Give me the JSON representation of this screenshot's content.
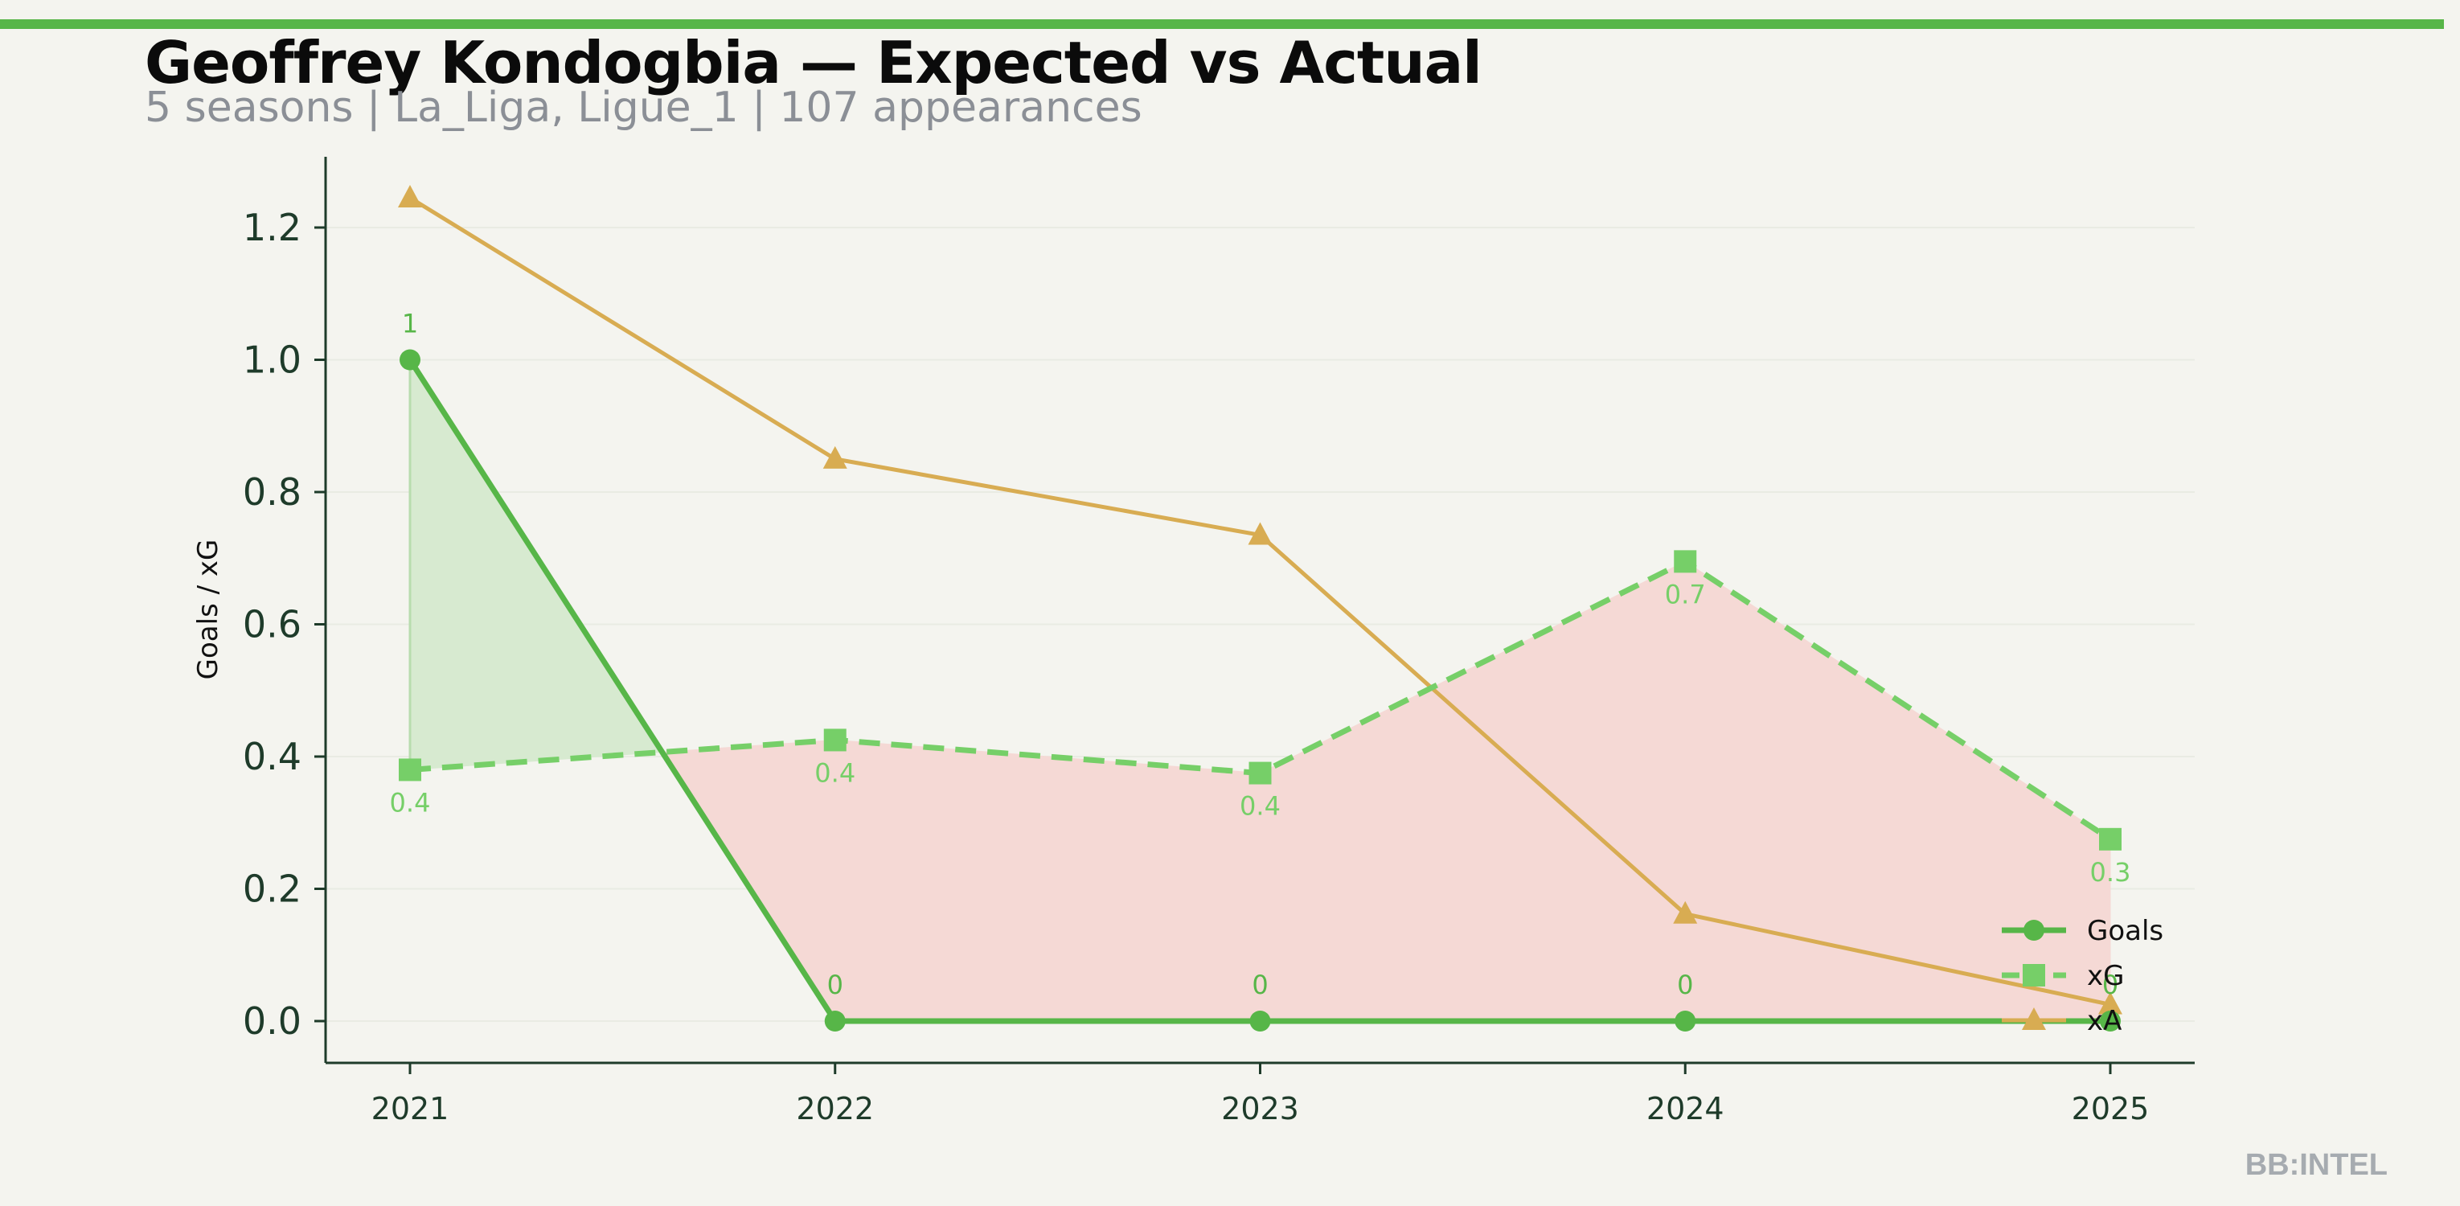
{
  "header": {
    "title": "Geoffrey Kondogbia — Expected vs Actual",
    "subtitle": "5 seasons | La_Liga, Ligue_1 | 107 appearances"
  },
  "watermark": "BB:INTEL",
  "colors": {
    "goals": "#57b648",
    "xg": "#76cf68",
    "xa": "#d8ac52",
    "over_fill": "#d7ead0",
    "under_fill": "#f5d9d5",
    "axis": "#1e3b2a",
    "background": "#f4f4ef"
  },
  "chart_data": {
    "type": "line",
    "title": "Geoffrey Kondogbia — Expected vs Actual",
    "subtitle": "5 seasons | La_Liga, Ligue_1 | 107 appearances",
    "xlabel": "",
    "ylabel": "Goals / xG",
    "x": [
      "2021",
      "2022",
      "2023",
      "2024",
      "2025"
    ],
    "ylim": [
      -0.06,
      1.31
    ],
    "yticks": [
      0.0,
      0.2,
      0.4,
      0.6,
      0.8,
      1.0,
      1.2
    ],
    "ytick_labels": [
      "0.0",
      "0.2",
      "0.4",
      "0.6",
      "0.8",
      "1.0",
      "1.2"
    ],
    "grid": true,
    "legend_position": "bottom-right",
    "series": [
      {
        "name": "Goals",
        "key": "goals",
        "values": [
          1,
          0,
          0,
          0,
          0
        ],
        "labels": [
          "1",
          "0",
          "0",
          "0",
          "0"
        ],
        "marker": "circle",
        "linestyle": "solid"
      },
      {
        "name": "xG",
        "key": "xg",
        "values": [
          0.38,
          0.425,
          0.375,
          0.695,
          0.275
        ],
        "labels": [
          "0.4",
          "0.4",
          "0.4",
          "0.7",
          "0.3"
        ],
        "marker": "square",
        "linestyle": "dashed"
      },
      {
        "name": "xA",
        "key": "xa",
        "values": [
          1.245,
          0.85,
          0.735,
          0.162,
          0.025
        ],
        "labels": [],
        "marker": "triangle",
        "linestyle": "solid"
      }
    ]
  }
}
